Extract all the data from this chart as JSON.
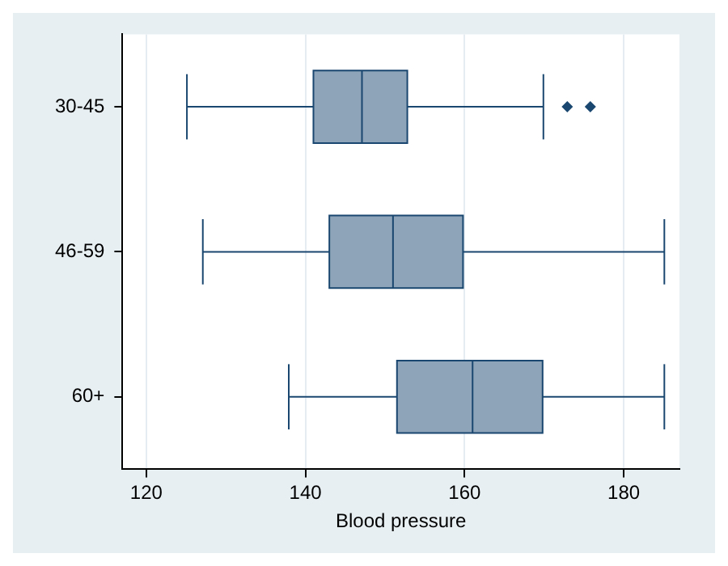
{
  "chart_data": {
    "type": "box",
    "orientation": "horizontal",
    "categories": [
      "30-45",
      "46-59",
      "60+"
    ],
    "xlabel": "Blood pressure",
    "xlim": [
      117,
      187
    ],
    "xticks": [
      120,
      140,
      160,
      180
    ],
    "grid": "x",
    "legend": false,
    "color": "#8ea4b8",
    "boxes": [
      {
        "low": 125.1,
        "q1": 141,
        "median": 147.1,
        "q3": 152.8,
        "high": 169.9,
        "outliers": [
          172.9,
          175.8
        ]
      },
      {
        "low": 127.1,
        "q1": 143,
        "median": 151,
        "q3": 159.8,
        "high": 185.1
      },
      {
        "low": 137.9,
        "q1": 151.5,
        "median": 161,
        "q3": 169.8,
        "high": 185.1
      }
    ]
  }
}
